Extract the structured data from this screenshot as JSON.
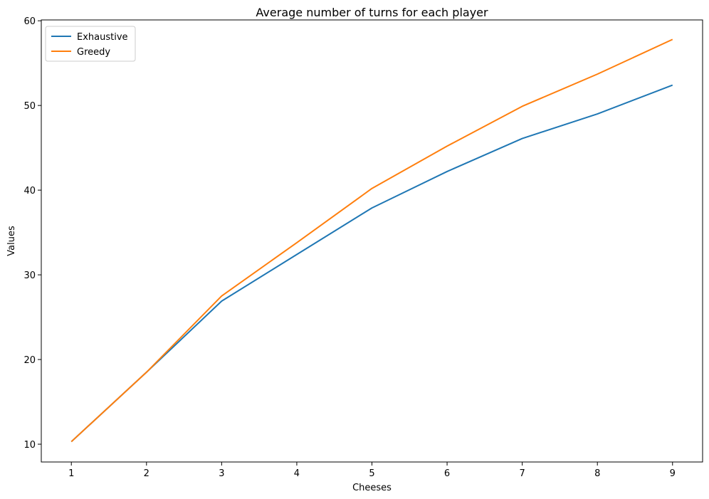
{
  "chart_data": {
    "type": "line",
    "title": "Average number of turns for each player",
    "xlabel": "Cheeses",
    "ylabel": "Values",
    "x": [
      1,
      2,
      3,
      4,
      5,
      6,
      7,
      8,
      9
    ],
    "xlim": [
      0.6,
      9.4
    ],
    "ylim": [
      7.9,
      60.1
    ],
    "xticks": [
      1,
      2,
      3,
      4,
      5,
      6,
      7,
      8,
      9
    ],
    "yticks": [
      10,
      20,
      30,
      40,
      50,
      60
    ],
    "grid": false,
    "legend_position": "upper-left",
    "series": [
      {
        "name": "Exhaustive",
        "color": "#1f77b4",
        "values": [
          10.3,
          18.5,
          26.9,
          32.4,
          37.9,
          42.2,
          46.1,
          49.0,
          52.4
        ]
      },
      {
        "name": "Greedy",
        "color": "#ff7f0e",
        "values": [
          10.3,
          18.5,
          27.5,
          33.8,
          40.2,
          45.2,
          49.9,
          53.7,
          57.8
        ]
      }
    ]
  }
}
